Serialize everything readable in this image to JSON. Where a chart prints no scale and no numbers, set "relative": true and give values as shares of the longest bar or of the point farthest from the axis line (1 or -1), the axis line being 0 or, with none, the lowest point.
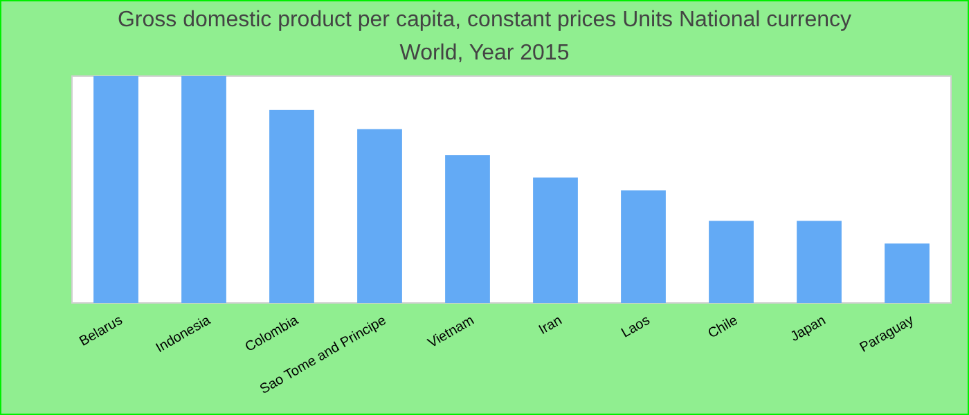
{
  "chart_data": {
    "type": "bar",
    "title": "Gross domestic product per capita, constant prices Units National currency",
    "subtitle": "World, Year 2015",
    "relative": true,
    "categories": [
      "Belarus",
      "Indonesia",
      "Colombia",
      "Sao Tome and Principe",
      "Vietnam",
      "Iran",
      "Laos",
      "Chile",
      "Japan",
      "Paraguay"
    ],
    "values": [
      1,
      1,
      0.851,
      0.766,
      0.652,
      0.553,
      0.496,
      0.362,
      0.362,
      0.262
    ],
    "color": "#63aaf5"
  }
}
